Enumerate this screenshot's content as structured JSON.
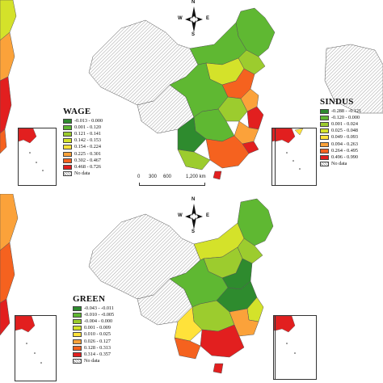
{
  "compass": {
    "n": "N",
    "s": "S",
    "e": "E",
    "w": "W"
  },
  "scale": {
    "t0": "0",
    "t1": "300",
    "t2": "600",
    "t3": "1,200 km"
  },
  "colors": {
    "c1": "#2e8b2e",
    "c2": "#5fb832",
    "c3": "#9ccc2e",
    "c4": "#d4e22a",
    "c5": "#ffe23a",
    "c6": "#fba23a",
    "c7": "#f5621f",
    "c8": "#e21f1f",
    "hatch": "#9a9a9a",
    "border": "#555555"
  },
  "panels": [
    {
      "id": "wage",
      "title": "WAGE",
      "no_data": "No data",
      "classes": [
        "-0.013 - 0.000",
        "0.001 - 0.120",
        "0.121 - 0.141",
        "0.142 - 0.153",
        "0.154 - 0.224",
        "0.225 - 0.301",
        "0.302 - 0.467",
        "0.468 - 0.726"
      ]
    },
    {
      "id": "sindus",
      "title": "SINDUS",
      "no_data": "No data",
      "classes": [
        "-0.288 - -0.121",
        "-0.120 - 0.000",
        "0.001 - 0.024",
        "0.025 - 0.048",
        "0.049 - 0.093",
        "0.094 - 0.263",
        "0.264 - 0.495",
        "0.496 - 0.990"
      ]
    },
    {
      "id": "green",
      "title": "GREEN",
      "no_data": "No data",
      "classes": [
        "-0.043 - -0.011",
        "-0.010 - -0.005",
        "-0.004 - 0.000",
        "0.001 - 0.009",
        "0.010 - 0.025",
        "0.026 - 0.127",
        "0.128 - 0.313",
        "0.314 - 0.357"
      ]
    }
  ]
}
